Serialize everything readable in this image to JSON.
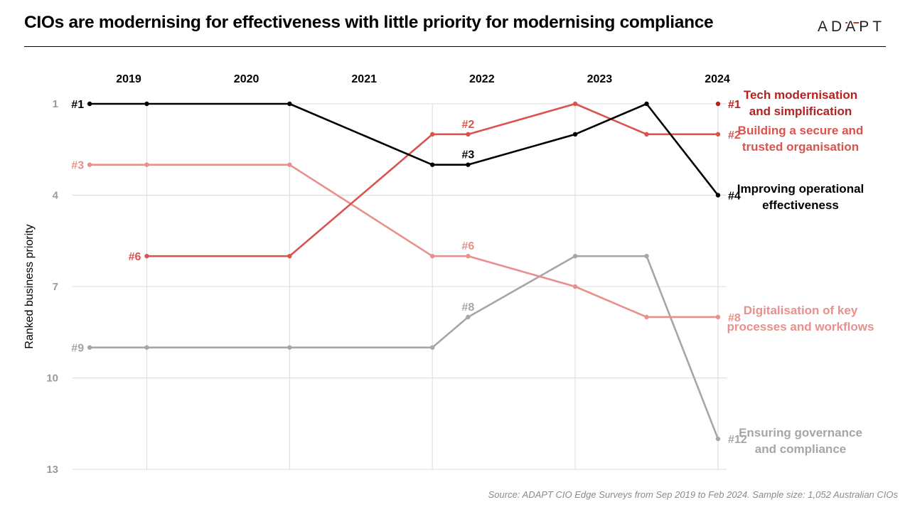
{
  "header": {
    "title": "CIOs are modernising for effectiveness with little priority for modernising compliance",
    "logo_pre": "AD",
    "logo_mid": "A",
    "logo_post": "PT"
  },
  "source": "Source: ADAPT CIO Edge Surveys from Sep 2019 to Feb 2024. Sample size: 1,052 Australian CIOs",
  "chart_data": {
    "type": "line",
    "ylabel": "Ranked business priority",
    "y_reversed": true,
    "ylim": [
      13,
      1
    ],
    "yticks": [
      1,
      4,
      7,
      10,
      13
    ],
    "ytick_labels": [
      "1",
      "4",
      "7",
      "10",
      "13"
    ],
    "year_labels": [
      {
        "label": "2019",
        "x": 2019.0
      },
      {
        "label": "2020",
        "x": 2020.0
      },
      {
        "label": "2021",
        "x": 2021.0
      },
      {
        "label": "2022",
        "x": 2022.0
      },
      {
        "label": "2023",
        "x": 2023.0
      },
      {
        "label": "2024",
        "x": 2024.0
      }
    ],
    "grid": true,
    "legend_position": "right",
    "series": [
      {
        "name": "Ensuring governance and compliance",
        "color": "#a6a6a6",
        "label_lines": [
          "Ensuring governance",
          "and compliance"
        ],
        "x": [
          2018.7,
          2019.1,
          2020.1,
          2021.1,
          2021.35,
          2022.1,
          2022.6,
          2023.1
        ],
        "y": [
          9,
          9,
          9,
          9,
          8,
          6,
          6,
          12
        ],
        "labels": [
          {
            "i": 0,
            "text": "#9",
            "pos": "left"
          },
          {
            "i": 4,
            "text": "#8",
            "pos": "above"
          },
          {
            "i": 7,
            "text": "#12",
            "pos": "right"
          }
        ]
      },
      {
        "name": "Digitalisation of key processes and workflows",
        "color": "#e8918c",
        "label_lines": [
          "Digitalisation of key",
          "processes and workflows"
        ],
        "x": [
          2018.7,
          2019.1,
          2020.1,
          2021.1,
          2021.35,
          2022.1,
          2022.6,
          2023.1
        ],
        "y": [
          3,
          3,
          3,
          6,
          6,
          7,
          8,
          8
        ],
        "labels": [
          {
            "i": 0,
            "text": "#3",
            "pos": "left"
          },
          {
            "i": 4,
            "text": "#6",
            "pos": "above"
          },
          {
            "i": 7,
            "text": "#8",
            "pos": "right"
          }
        ]
      },
      {
        "name": "Building a secure and trusted organisation",
        "color": "#d9534f",
        "label_lines": [
          "Building a secure and",
          "trusted organisation"
        ],
        "x": [
          2019.1,
          2020.1,
          2021.1,
          2021.35,
          2022.1,
          2022.6,
          2023.1
        ],
        "y": [
          6,
          6,
          2,
          2,
          1,
          2,
          2
        ],
        "labels": [
          {
            "i": 0,
            "text": "#6",
            "pos": "left"
          },
          {
            "i": 3,
            "text": "#2",
            "pos": "above"
          },
          {
            "i": 6,
            "text": "#2",
            "pos": "right"
          }
        ]
      },
      {
        "name": "Improving operational effectiveness",
        "color": "#000000",
        "label_lines": [
          "Improving operational",
          "effectiveness"
        ],
        "x": [
          2018.7,
          2019.1,
          2020.1,
          2021.1,
          2021.35,
          2022.1,
          2022.6,
          2023.1
        ],
        "y": [
          1,
          1,
          1,
          3,
          3,
          2,
          1,
          4
        ],
        "labels": [
          {
            "i": 0,
            "text": "#1",
            "pos": "left"
          },
          {
            "i": 4,
            "text": "#3",
            "pos": "above"
          },
          {
            "i": 7,
            "text": "#4",
            "pos": "right"
          }
        ]
      },
      {
        "name": "Tech modernisation and simplification",
        "color": "#b22222",
        "label_lines": [
          "Tech modernisation",
          "and simplification"
        ],
        "x": [
          2023.1
        ],
        "y": [
          1
        ],
        "labels": [
          {
            "i": 0,
            "text": "#1",
            "pos": "right"
          }
        ]
      }
    ]
  }
}
